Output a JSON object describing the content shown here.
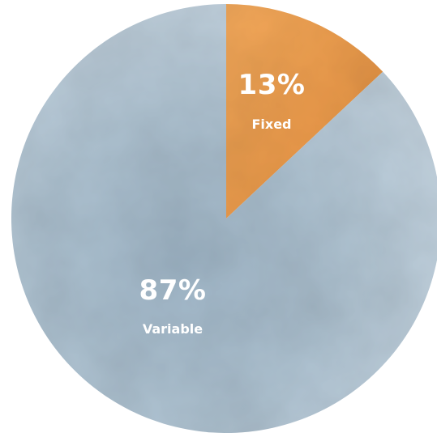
{
  "chart_data": {
    "type": "pie",
    "slices": [
      {
        "label": "Fixed",
        "value": 13,
        "display": "13%",
        "color": "#ec9a48"
      },
      {
        "label": "Variable",
        "value": 87,
        "display": "87%",
        "color": "#b3c6d4"
      }
    ],
    "start_angle_deg": 0,
    "direction": "clockwise",
    "legend": "none",
    "style": "watercolor"
  }
}
